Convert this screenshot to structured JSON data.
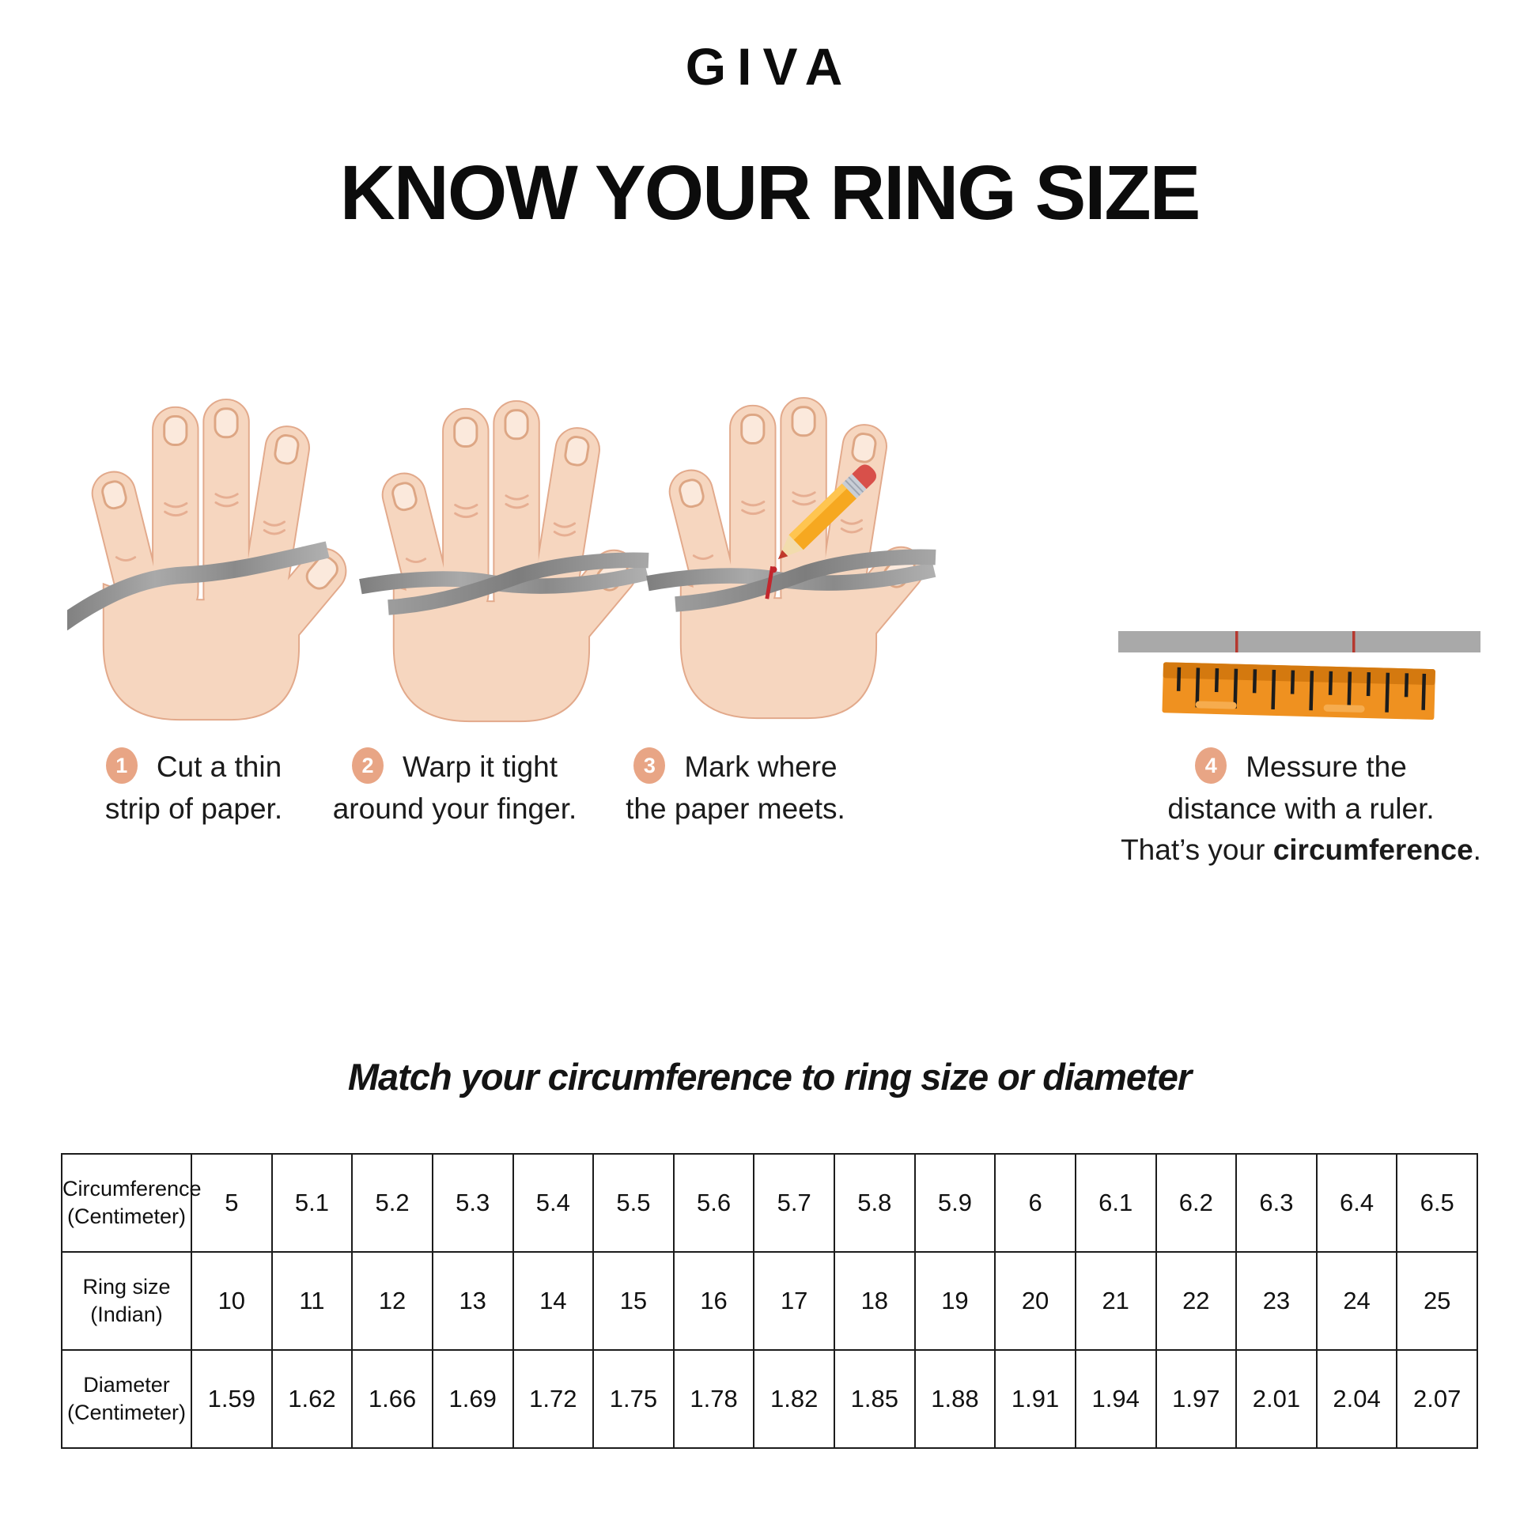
{
  "brand": {
    "logo_text": "GIVA"
  },
  "title": "KNOW YOUR RING SIZE",
  "steps": [
    {
      "number": "1",
      "line1": "Cut a thin",
      "line2": "strip of paper."
    },
    {
      "number": "2",
      "line1": "Warp it tight",
      "line2": "around your finger."
    },
    {
      "number": "3",
      "line1": "Mark where",
      "line2": "the paper meets."
    },
    {
      "number": "4",
      "line1": "Messure the",
      "line2": "distance with a ruler.",
      "line3_prefix": "That’s your ",
      "line3_bold": "circumference",
      "line3_suffix": "."
    }
  ],
  "match_heading": "Match your circumference to ring size or diameter",
  "table": {
    "rows": [
      {
        "header_line1": "Circumference",
        "header_line2": "(Centimeter)",
        "values": [
          "5",
          "5.1",
          "5.2",
          "5.3",
          "5.4",
          "5.5",
          "5.6",
          "5.7",
          "5.8",
          "5.9",
          "6",
          "6.1",
          "6.2",
          "6.3",
          "6.4",
          "6.5"
        ]
      },
      {
        "header_line1": "Ring size",
        "header_line2": "(Indian)",
        "values": [
          "10",
          "11",
          "12",
          "13",
          "14",
          "15",
          "16",
          "17",
          "18",
          "19",
          "20",
          "21",
          "22",
          "23",
          "24",
          "25"
        ]
      },
      {
        "header_line1": "Diameter",
        "header_line2": "(Centimeter)",
        "values": [
          "1.59",
          "1.62",
          "1.66",
          "1.69",
          "1.72",
          "1.75",
          "1.78",
          "1.82",
          "1.85",
          "1.88",
          "1.91",
          "1.94",
          "1.97",
          "2.01",
          "2.04",
          "2.07"
        ]
      }
    ]
  },
  "colors": {
    "badge": "#E8A585",
    "skin": "#F6D6BF",
    "skin_outline": "#E2A98B",
    "strip_gray": "#969696",
    "mark_red": "#C2272D",
    "pencil_yellow": "#F6A820",
    "ruler_orange": "#EF9120",
    "text": "#111111"
  }
}
